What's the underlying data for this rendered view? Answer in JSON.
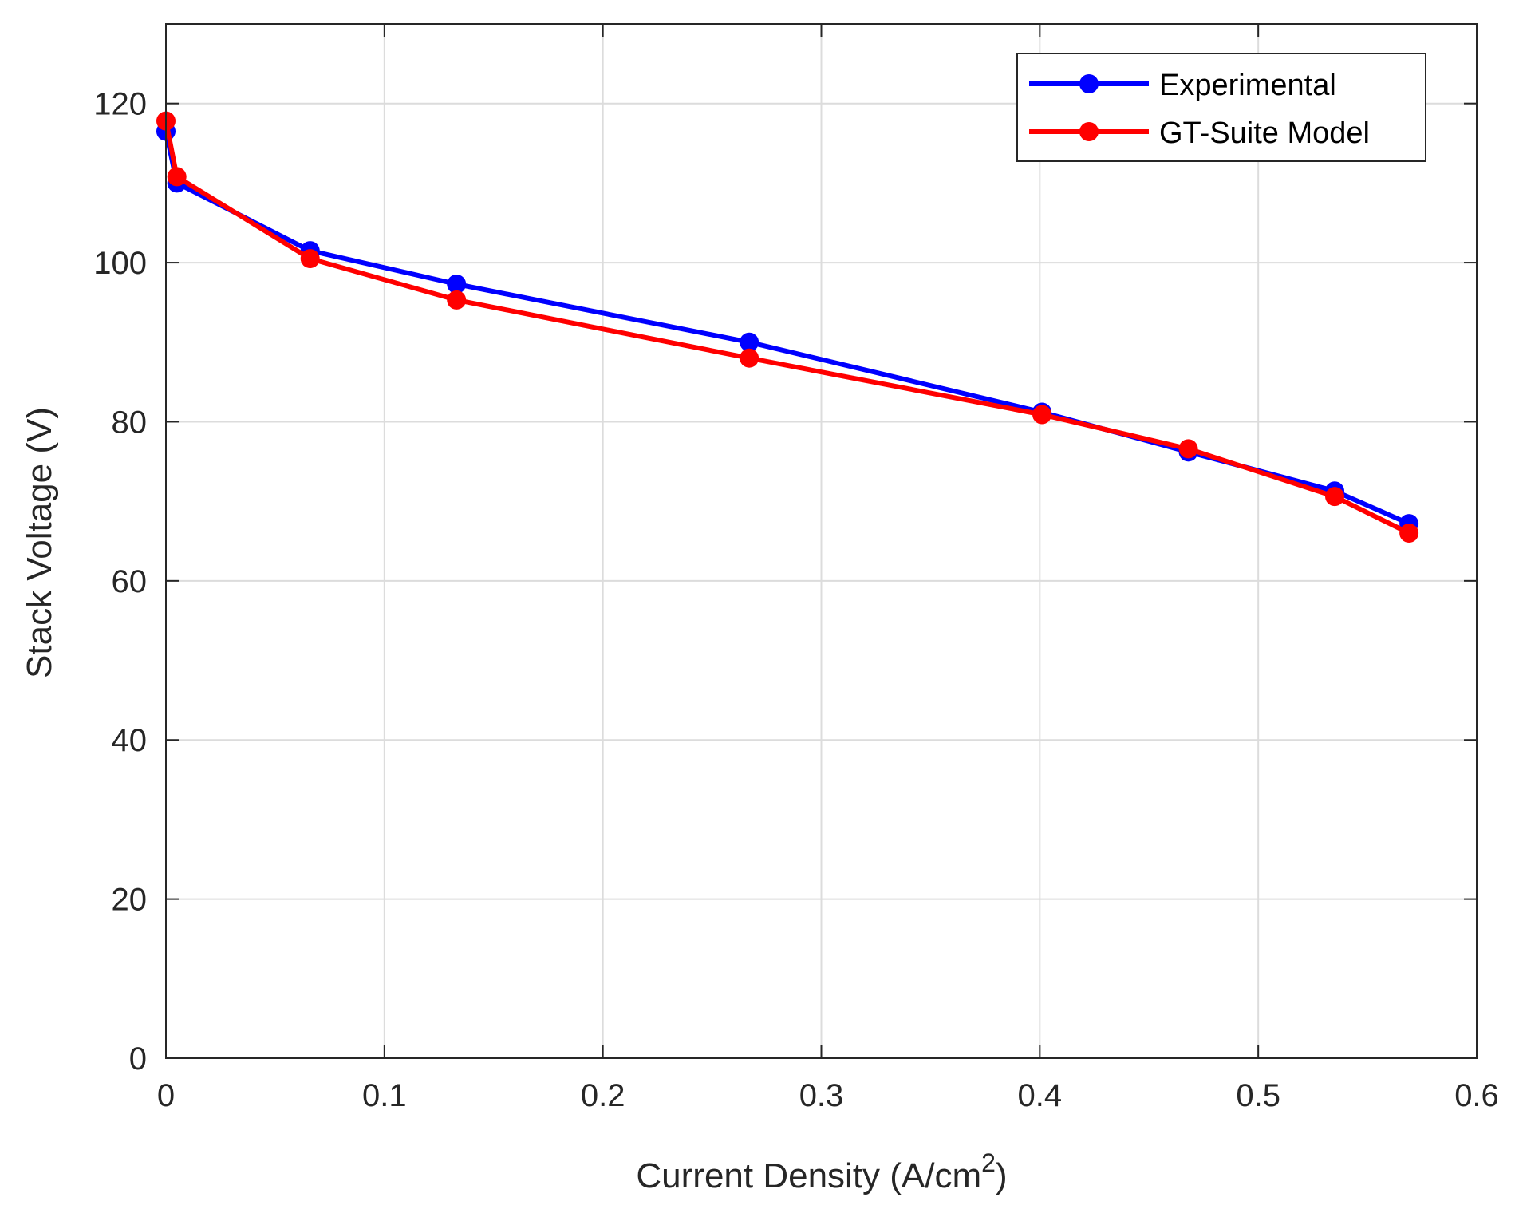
{
  "chart_data": {
    "type": "line",
    "title": "",
    "xlabel": "Current Density (A/cm",
    "xlabel_superscript": "2",
    "xlabel_suffix": ")",
    "ylabel": "Stack Voltage (V)",
    "xlim": [
      0,
      0.6
    ],
    "ylim": [
      0,
      130
    ],
    "xticks": [
      0,
      0.1,
      0.2,
      0.3,
      0.4,
      0.5,
      0.6
    ],
    "xtick_labels": [
      "0",
      "0.1",
      "0.2",
      "0.3",
      "0.4",
      "0.5",
      "0.6"
    ],
    "yticks": [
      0,
      20,
      40,
      60,
      80,
      100,
      120
    ],
    "ytick_labels": [
      "0",
      "20",
      "40",
      "60",
      "80",
      "100",
      "120"
    ],
    "grid": true,
    "legend_position": "top-right",
    "series": [
      {
        "name": "Experimental",
        "color": "#0000ff",
        "x": [
          0,
          0.005,
          0.066,
          0.133,
          0.267,
          0.401,
          0.468,
          0.535,
          0.569
        ],
        "y": [
          116.5,
          110,
          101.5,
          97.3,
          90,
          81.2,
          76.2,
          71.3,
          67.2
        ]
      },
      {
        "name": "GT-Suite Model",
        "color": "#ff0000",
        "x": [
          0,
          0.005,
          0.066,
          0.133,
          0.267,
          0.401,
          0.468,
          0.535,
          0.569
        ],
        "y": [
          117.8,
          110.8,
          100.5,
          95.3,
          88,
          80.9,
          76.6,
          70.6,
          66
        ]
      }
    ]
  }
}
